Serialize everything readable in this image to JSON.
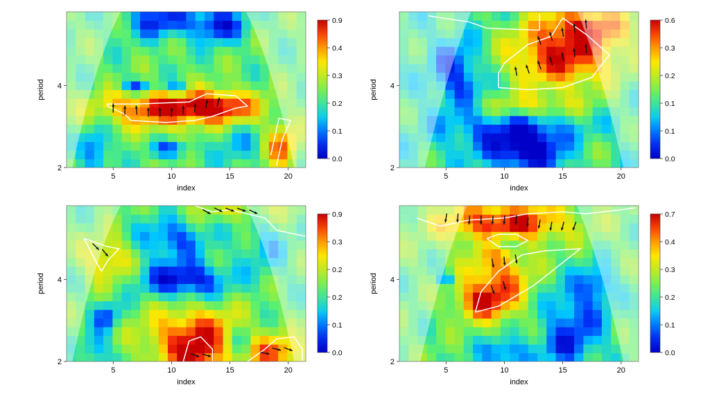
{
  "chart_data": [
    {
      "type": "heatmap",
      "panel": "top-left",
      "xlabel": "index",
      "ylabel": "period",
      "xlim": [
        1,
        21.5
      ],
      "ylim": [
        2,
        5.8
      ],
      "x_ticks": [
        5,
        10,
        15,
        20
      ],
      "y_ticks": [
        2,
        4
      ],
      "x_tick_labels": [
        "5",
        "10",
        "15",
        "20"
      ],
      "y_tick_labels": [
        "2",
        "4"
      ],
      "colorbar": {
        "tick_labels": [
          "0.9",
          "0.4",
          "0.3",
          "0.2",
          "0.1",
          "0.0"
        ]
      },
      "base_level": 0.45,
      "blobs": [
        {
          "x": 10,
          "y": 3.45,
          "sx": 4.2,
          "sy": 0.32,
          "v": 0.55
        },
        {
          "x": 14.5,
          "y": 3.5,
          "sx": 2.0,
          "sy": 0.25,
          "v": 0.3
        },
        {
          "x": 19.5,
          "y": 2.5,
          "sx": 1.0,
          "sy": 0.4,
          "v": 0.4
        },
        {
          "x": 9,
          "y": 5.6,
          "sx": 2.0,
          "sy": 0.3,
          "v": -0.35
        },
        {
          "x": 14,
          "y": 5.5,
          "sx": 1.5,
          "sy": 0.3,
          "v": -0.4
        },
        {
          "x": 7,
          "y": 4.0,
          "sx": 1.0,
          "sy": 0.12,
          "v": -0.35
        },
        {
          "x": 10.5,
          "y": 3.95,
          "sx": 0.8,
          "sy": 0.12,
          "v": -0.3
        },
        {
          "x": 10,
          "y": 2.45,
          "sx": 1.2,
          "sy": 0.12,
          "v": -0.3
        },
        {
          "x": 3.5,
          "y": 2.4,
          "sx": 0.8,
          "sy": 0.4,
          "v": -0.3
        },
        {
          "x": 15.5,
          "y": 2.6,
          "sx": 1.5,
          "sy": 0.4,
          "v": -0.15
        }
      ],
      "cone": {
        "x_start": 1.5,
        "x_end": 20.5,
        "apex_y": 5.8
      },
      "contours": [
        [
          [
            4.5,
            3.5
          ],
          [
            6.0,
            3.3
          ],
          [
            6.5,
            3.15
          ],
          [
            9.5,
            3.1
          ],
          [
            12.0,
            3.15
          ],
          [
            13.5,
            3.25
          ],
          [
            15.5,
            3.45
          ],
          [
            16.5,
            3.5
          ],
          [
            15.5,
            3.75
          ],
          [
            13.0,
            3.8
          ],
          [
            11.5,
            3.6
          ],
          [
            7.0,
            3.55
          ],
          [
            4.5,
            3.55
          ],
          [
            4.5,
            3.5
          ]
        ],
        [
          [
            18.5,
            2.3
          ],
          [
            19.2,
            3.2
          ],
          [
            20.2,
            3.15
          ],
          [
            19.5,
            2.7
          ],
          [
            19.0,
            2.05
          ]
        ]
      ],
      "arrows": [
        {
          "x": 5,
          "y": 3.45,
          "angle": 90
        },
        {
          "x": 6,
          "y": 3.4,
          "angle": 90
        },
        {
          "x": 7,
          "y": 3.4,
          "angle": 95
        },
        {
          "x": 8,
          "y": 3.35,
          "angle": 90
        },
        {
          "x": 9,
          "y": 3.35,
          "angle": 92
        },
        {
          "x": 10,
          "y": 3.35,
          "angle": 88
        },
        {
          "x": 11,
          "y": 3.4,
          "angle": 90
        },
        {
          "x": 12,
          "y": 3.45,
          "angle": 85
        },
        {
          "x": 13,
          "y": 3.55,
          "angle": 80
        },
        {
          "x": 14,
          "y": 3.6,
          "angle": 75
        }
      ]
    },
    {
      "type": "heatmap",
      "panel": "top-right",
      "xlabel": "index",
      "ylabel": "period",
      "xlim": [
        1,
        21.5
      ],
      "ylim": [
        2,
        5.8
      ],
      "x_ticks": [
        5,
        10,
        15,
        20
      ],
      "y_ticks": [
        2,
        4
      ],
      "x_tick_labels": [
        "5",
        "10",
        "15",
        "20"
      ],
      "y_tick_labels": [
        "2",
        "4"
      ],
      "colorbar": {
        "tick_labels": [
          "0.6",
          "0.3",
          "0.2",
          "0.1",
          "0.1",
          "0.0"
        ]
      },
      "base_level": 0.4,
      "blobs": [
        {
          "x": 15,
          "y": 4.7,
          "sx": 3.5,
          "sy": 0.55,
          "v": 0.55
        },
        {
          "x": 17,
          "y": 5.5,
          "sx": 3.0,
          "sy": 0.35,
          "v": 0.4
        },
        {
          "x": 11,
          "y": 3.0,
          "sx": 4.0,
          "sy": 0.5,
          "v": -0.3
        },
        {
          "x": 12,
          "y": 2.4,
          "sx": 2.0,
          "sy": 0.35,
          "v": -0.35
        },
        {
          "x": 6,
          "y": 4.3,
          "sx": 1.5,
          "sy": 0.6,
          "v": -0.3
        },
        {
          "x": 12,
          "y": 3.5,
          "sx": 3.5,
          "sy": 0.25,
          "v": 0.35
        },
        {
          "x": 17,
          "y": 2.5,
          "sx": 1.5,
          "sy": 0.3,
          "v": 0.1
        }
      ],
      "cone": {
        "x_start": 3.2,
        "x_end": 20.2,
        "apex_y": 5.2
      },
      "contours": [
        [
          [
            3.5,
            5.7
          ],
          [
            7.0,
            5.55
          ],
          [
            8.5,
            5.4
          ],
          [
            13.0,
            5.35
          ],
          [
            13.0,
            5.75
          ]
        ],
        [
          [
            9.5,
            3.95
          ],
          [
            9.5,
            4.3
          ],
          [
            10.0,
            4.55
          ],
          [
            12.0,
            5.0
          ],
          [
            14.0,
            5.2
          ],
          [
            15.0,
            5.65
          ],
          [
            17.0,
            5.25
          ],
          [
            19.0,
            4.75
          ],
          [
            17.5,
            4.2
          ],
          [
            15.0,
            3.95
          ],
          [
            12.0,
            3.9
          ],
          [
            9.5,
            3.95
          ]
        ]
      ],
      "arrows": [
        {
          "x": 11,
          "y": 4.35,
          "angle": 100
        },
        {
          "x": 12,
          "y": 4.4,
          "angle": 110
        },
        {
          "x": 13,
          "y": 4.5,
          "angle": 110
        },
        {
          "x": 14,
          "y": 4.6,
          "angle": 105
        },
        {
          "x": 15,
          "y": 4.7,
          "angle": 100
        },
        {
          "x": 16,
          "y": 4.8,
          "angle": 95
        },
        {
          "x": 17,
          "y": 4.9,
          "angle": 95
        },
        {
          "x": 13,
          "y": 5.1,
          "angle": 110
        },
        {
          "x": 14,
          "y": 5.2,
          "angle": 105
        },
        {
          "x": 15,
          "y": 5.3,
          "angle": 100
        },
        {
          "x": 16,
          "y": 5.4,
          "angle": 95
        },
        {
          "x": 17,
          "y": 5.5,
          "angle": 95
        }
      ]
    },
    {
      "type": "heatmap",
      "panel": "bottom-left",
      "xlabel": "index",
      "ylabel": "period",
      "xlim": [
        1,
        21.5
      ],
      "ylim": [
        2,
        5.8
      ],
      "x_ticks": [
        5,
        10,
        15,
        20
      ],
      "y_ticks": [
        2,
        4
      ],
      "x_tick_labels": [
        "5",
        "10",
        "15",
        "20"
      ],
      "y_tick_labels": [
        "2",
        "4"
      ],
      "colorbar": {
        "tick_labels": [
          "0.9",
          "0.3",
          "0.2",
          "0.2",
          "0.1",
          "0.0"
        ]
      },
      "base_level": 0.45,
      "blobs": [
        {
          "x": 12,
          "y": 2.6,
          "sx": 3.0,
          "sy": 0.5,
          "v": 0.5
        },
        {
          "x": 12,
          "y": 2.15,
          "sx": 1.2,
          "sy": 0.2,
          "v": 0.3
        },
        {
          "x": 19,
          "y": 2.2,
          "sx": 1.8,
          "sy": 0.3,
          "v": 0.4
        },
        {
          "x": 4.5,
          "y": 4.5,
          "sx": 1.5,
          "sy": 0.4,
          "v": 0.3
        },
        {
          "x": 11,
          "y": 4.0,
          "sx": 2.5,
          "sy": 0.3,
          "v": -0.45
        },
        {
          "x": 10,
          "y": 5.0,
          "sx": 2.0,
          "sy": 0.35,
          "v": -0.3
        },
        {
          "x": 4.5,
          "y": 3.1,
          "sx": 0.8,
          "sy": 0.25,
          "v": -0.3
        },
        {
          "x": 3.5,
          "y": 2.3,
          "sx": 0.8,
          "sy": 0.3,
          "v": -0.25
        },
        {
          "x": 16,
          "y": 2.5,
          "sx": 0.8,
          "sy": 0.3,
          "v": -0.25
        },
        {
          "x": 18,
          "y": 4.8,
          "sx": 1.5,
          "sy": 0.5,
          "v": -0.15
        },
        {
          "x": 16,
          "y": 5.7,
          "sx": 3.5,
          "sy": 0.2,
          "v": 0.15
        }
      ],
      "cone": {
        "x_start": 1.5,
        "x_end": 20.5,
        "apex_y": 5.8
      },
      "contours": [
        [
          [
            2.5,
            5.0
          ],
          [
            3.5,
            4.9
          ],
          [
            4.5,
            4.8
          ],
          [
            5.5,
            4.75
          ],
          [
            4.5,
            4.45
          ],
          [
            4.0,
            4.2
          ],
          [
            3.5,
            4.45
          ],
          [
            2.5,
            5.0
          ]
        ],
        [
          [
            11.0,
            2.0
          ],
          [
            11.5,
            2.5
          ],
          [
            12.5,
            2.6
          ],
          [
            13.5,
            2.3
          ],
          [
            13.5,
            2.0
          ]
        ],
        [
          [
            16.5,
            2.0
          ],
          [
            18.0,
            2.3
          ],
          [
            19.0,
            2.55
          ],
          [
            20.5,
            2.6
          ],
          [
            21.2,
            2.3
          ],
          [
            21.2,
            2.0
          ]
        ],
        [
          [
            12.0,
            5.8
          ],
          [
            13.5,
            5.65
          ],
          [
            15.0,
            5.7
          ],
          [
            18.0,
            5.5
          ],
          [
            19.0,
            5.2
          ],
          [
            21.5,
            5.05
          ]
        ]
      ],
      "arrows": [
        {
          "x": 3.5,
          "y": 4.8,
          "angle": -45
        },
        {
          "x": 4.3,
          "y": 4.65,
          "angle": -50
        },
        {
          "x": 12,
          "y": 2.15,
          "angle": -20
        },
        {
          "x": 13,
          "y": 2.15,
          "angle": -15
        },
        {
          "x": 18,
          "y": 2.2,
          "angle": -10
        },
        {
          "x": 19,
          "y": 2.3,
          "angle": -15
        },
        {
          "x": 20,
          "y": 2.3,
          "angle": -20
        },
        {
          "x": 13,
          "y": 5.65,
          "angle": -30
        },
        {
          "x": 14,
          "y": 5.7,
          "angle": -25
        },
        {
          "x": 15,
          "y": 5.7,
          "angle": -20
        },
        {
          "x": 16,
          "y": 5.7,
          "angle": -20
        },
        {
          "x": 17,
          "y": 5.65,
          "angle": -25
        }
      ]
    },
    {
      "type": "heatmap",
      "panel": "bottom-right",
      "xlabel": "index",
      "ylabel": "period",
      "xlim": [
        1,
        21.5
      ],
      "ylim": [
        2,
        5.8
      ],
      "x_ticks": [
        5,
        10,
        15,
        20
      ],
      "y_ticks": [
        2,
        4
      ],
      "x_tick_labels": [
        "5",
        "10",
        "15",
        "20"
      ],
      "y_tick_labels": [
        "2",
        "4"
      ],
      "colorbar": {
        "tick_labels": [
          "0.7",
          "0.4",
          "0.3",
          "0.2",
          "0.1",
          "0.0"
        ]
      },
      "base_level": 0.45,
      "blobs": [
        {
          "x": 10,
          "y": 5.4,
          "sx": 4.0,
          "sy": 0.35,
          "v": 0.5
        },
        {
          "x": 9.5,
          "y": 4.0,
          "sx": 2.0,
          "sy": 0.6,
          "v": 0.4
        },
        {
          "x": 8,
          "y": 3.45,
          "sx": 1.5,
          "sy": 0.3,
          "v": 0.35
        },
        {
          "x": 10,
          "y": 4.95,
          "sx": 1.2,
          "sy": 0.12,
          "v": -0.3
        },
        {
          "x": 16,
          "y": 3.0,
          "sx": 2.0,
          "sy": 0.7,
          "v": -0.3
        },
        {
          "x": 18,
          "y": 3.9,
          "sx": 1.0,
          "sy": 0.3,
          "v": -0.25
        },
        {
          "x": 10,
          "y": 2.2,
          "sx": 1.5,
          "sy": 0.25,
          "v": -0.3
        },
        {
          "x": 5,
          "y": 4.05,
          "sx": 0.5,
          "sy": 0.1,
          "v": -0.3
        },
        {
          "x": 15,
          "y": 2.3,
          "sx": 1.5,
          "sy": 0.3,
          "v": -0.15
        }
      ],
      "cone": {
        "x_start": 2.8,
        "x_end": 20.2,
        "apex_y": 5.3
      },
      "contours": [
        [
          [
            2.5,
            5.5
          ],
          [
            4.5,
            5.3
          ],
          [
            7.0,
            5.45
          ],
          [
            10.0,
            5.5
          ],
          [
            12.0,
            5.6
          ],
          [
            15.0,
            5.65
          ],
          [
            17.0,
            5.6
          ],
          [
            20.0,
            5.7
          ],
          [
            21.2,
            5.75
          ]
        ],
        [
          [
            8.5,
            5.0
          ],
          [
            9.5,
            5.1
          ],
          [
            11.0,
            5.1
          ],
          [
            12.0,
            4.95
          ],
          [
            11.0,
            4.8
          ],
          [
            9.5,
            4.8
          ],
          [
            8.5,
            5.0
          ]
        ],
        [
          [
            7.5,
            3.2
          ],
          [
            9.5,
            3.35
          ],
          [
            11.0,
            3.6
          ],
          [
            12.5,
            3.85
          ],
          [
            14.5,
            4.3
          ],
          [
            16.5,
            4.75
          ],
          [
            13.5,
            4.7
          ],
          [
            11.5,
            4.6
          ],
          [
            9.5,
            4.2
          ],
          [
            8.0,
            3.7
          ],
          [
            7.5,
            3.2
          ]
        ]
      ],
      "arrows": [
        {
          "x": 5,
          "y": 5.5,
          "angle": -100
        },
        {
          "x": 6,
          "y": 5.5,
          "angle": -95
        },
        {
          "x": 7,
          "y": 5.45,
          "angle": -95
        },
        {
          "x": 8,
          "y": 5.45,
          "angle": -90
        },
        {
          "x": 9,
          "y": 5.45,
          "angle": -95
        },
        {
          "x": 10,
          "y": 5.45,
          "angle": -95
        },
        {
          "x": 11,
          "y": 5.45,
          "angle": -95
        },
        {
          "x": 12,
          "y": 5.4,
          "angle": -95
        },
        {
          "x": 13,
          "y": 5.35,
          "angle": -100
        },
        {
          "x": 14,
          "y": 5.3,
          "angle": -100
        },
        {
          "x": 15,
          "y": 5.3,
          "angle": -105
        },
        {
          "x": 16,
          "y": 5.3,
          "angle": -110
        },
        {
          "x": 9,
          "y": 4.4,
          "angle": -80
        },
        {
          "x": 10,
          "y": 4.45,
          "angle": -85
        },
        {
          "x": 11,
          "y": 4.5,
          "angle": -80
        },
        {
          "x": 9,
          "y": 3.75,
          "angle": -70
        },
        {
          "x": 10,
          "y": 3.85,
          "angle": -75
        }
      ]
    }
  ]
}
